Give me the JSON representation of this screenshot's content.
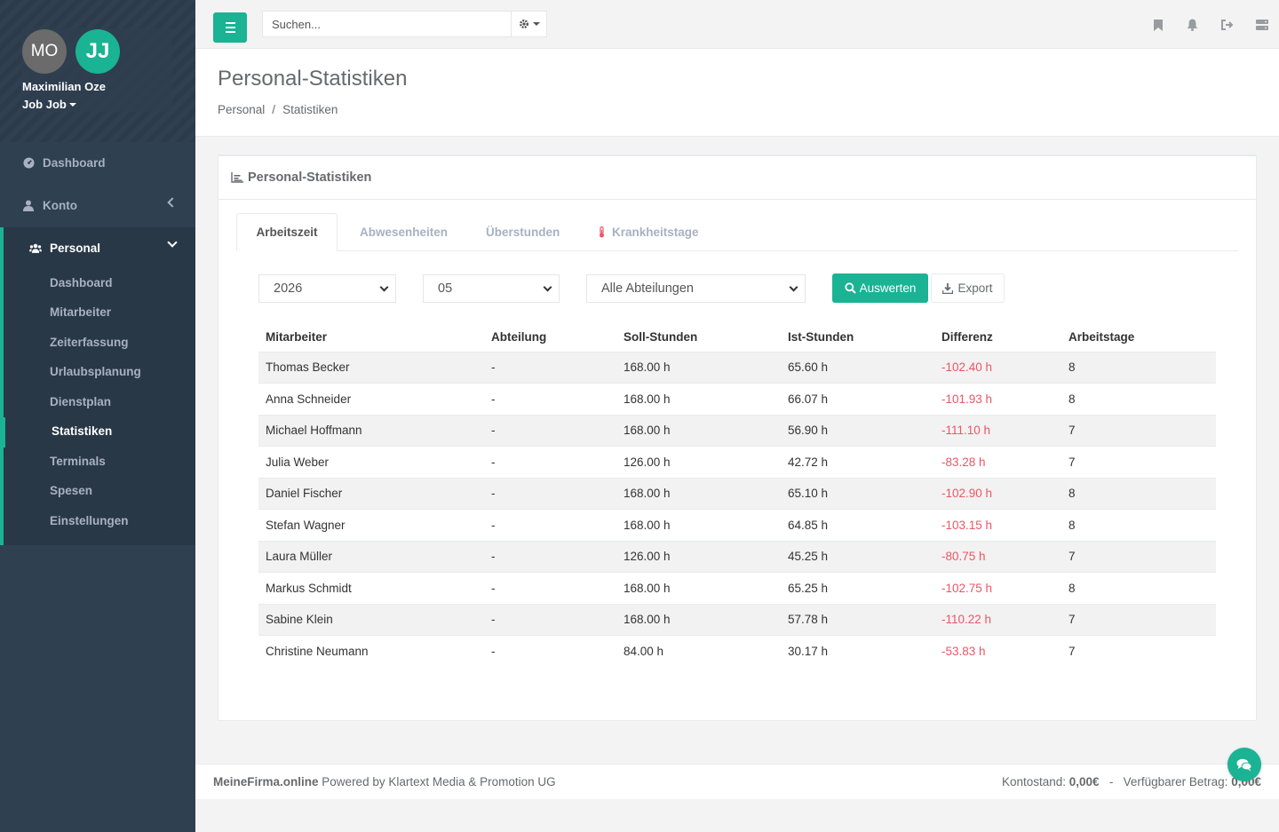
{
  "user": {
    "initials_1": "MO",
    "initials_2": "JJ",
    "name": "Maximilian Oze",
    "role": "Job Job"
  },
  "sidebar": {
    "items": [
      {
        "label": "Dashboard",
        "icon": "dashboard-icon"
      },
      {
        "label": "Konto",
        "icon": "user-icon"
      },
      {
        "label": "Personal",
        "icon": "users-icon"
      }
    ],
    "sub_items": [
      "Dashboard",
      "Mitarbeiter",
      "Zeiterfassung",
      "Urlaubsplanung",
      "Dienstplan",
      "Statistiken",
      "Terminals",
      "Spesen",
      "Einstellungen"
    ]
  },
  "topbar": {
    "search_placeholder": "Suchen...",
    "icons": [
      "bookmark-icon",
      "bell-icon",
      "sign-out-icon",
      "server-icon"
    ]
  },
  "heading": {
    "title": "Personal-Statistiken",
    "breadcrumb": [
      "Personal",
      "Statistiken"
    ]
  },
  "panel": {
    "title": "Personal-Statistiken",
    "tabs": [
      "Arbeitszeit",
      "Abwesenheiten",
      "Überstunden",
      "Krankheitstage"
    ],
    "filters": {
      "year": "2026",
      "month": "05",
      "department": "Alle Abteilungen"
    },
    "evaluate_label": "Auswerten",
    "export_label": "Export"
  },
  "table": {
    "headers": [
      "Mitarbeiter",
      "Abteilung",
      "Soll-Stunden",
      "Ist-Stunden",
      "Differenz",
      "Arbeitstage"
    ],
    "rows": [
      [
        "Thomas Becker",
        "-",
        "168.00 h",
        "65.60 h",
        "-102.40 h",
        "8"
      ],
      [
        "Anna Schneider",
        "-",
        "168.00 h",
        "66.07 h",
        "-101.93 h",
        "8"
      ],
      [
        "Michael Hoffmann",
        "-",
        "168.00 h",
        "56.90 h",
        "-111.10 h",
        "7"
      ],
      [
        "Julia Weber",
        "-",
        "126.00 h",
        "42.72 h",
        "-83.28 h",
        "7"
      ],
      [
        "Daniel Fischer",
        "-",
        "168.00 h",
        "65.10 h",
        "-102.90 h",
        "8"
      ],
      [
        "Stefan Wagner",
        "-",
        "168.00 h",
        "64.85 h",
        "-103.15 h",
        "8"
      ],
      [
        "Laura Müller",
        "-",
        "126.00 h",
        "45.25 h",
        "-80.75 h",
        "7"
      ],
      [
        "Markus Schmidt",
        "-",
        "168.00 h",
        "65.25 h",
        "-102.75 h",
        "8"
      ],
      [
        "Sabine Klein",
        "-",
        "168.00 h",
        "57.78 h",
        "-110.22 h",
        "7"
      ],
      [
        "Christine Neumann",
        "-",
        "84.00 h",
        "30.17 h",
        "-53.83 h",
        "7"
      ]
    ]
  },
  "footer": {
    "brand": "MeineFirma.online",
    "powered": "Powered by Klartext Media & Promotion UG",
    "balance_label": "Kontostand:",
    "balance_value": "0,00€",
    "separator": "-",
    "available_label": "Verfügbarer Betrag:",
    "available_value": "0,00€"
  },
  "colors": {
    "accent": "#1ab394",
    "sidebar": "#2f4050",
    "negative": "#ed5565"
  }
}
